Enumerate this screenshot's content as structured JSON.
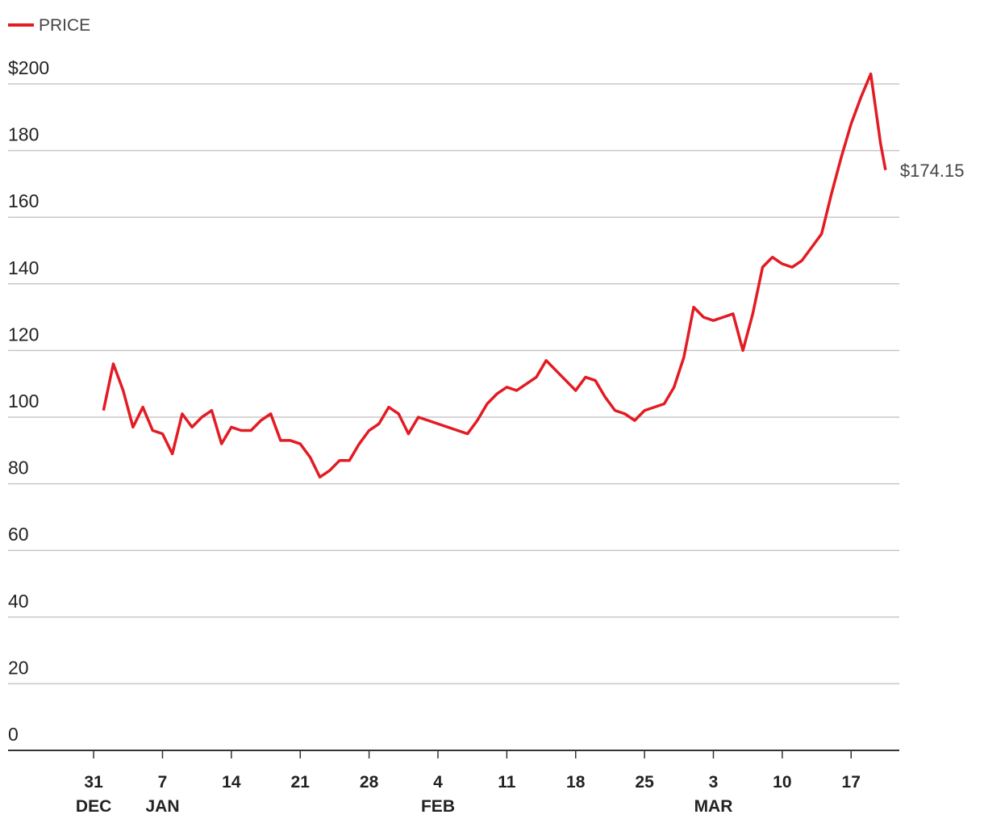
{
  "chart_data": {
    "type": "line",
    "x": [
      1,
      2,
      3,
      4,
      5,
      6,
      7,
      8,
      9,
      10,
      11,
      12,
      13,
      14,
      15,
      16,
      17,
      18,
      19,
      20,
      21,
      22,
      23,
      24,
      25,
      26,
      27,
      28,
      29,
      30,
      31,
      32,
      33,
      34,
      35,
      36,
      37,
      38,
      39,
      40,
      41,
      42,
      43,
      44,
      45,
      46,
      47,
      48,
      49,
      50,
      51,
      52,
      53,
      54,
      55,
      56,
      57,
      58,
      59,
      60,
      61,
      62,
      63,
      64,
      65,
      66,
      67,
      68,
      69,
      70,
      71,
      72,
      73,
      74,
      75,
      76,
      77,
      78,
      79,
      80,
      80.5
    ],
    "series": [
      {
        "name": "PRICE",
        "color": "#e31b23",
        "values": [
          102,
          116,
          108,
          97,
          103,
          96,
          95,
          89,
          101,
          97,
          100,
          102,
          92,
          97,
          96,
          96,
          99,
          101,
          93,
          93,
          92,
          88,
          82,
          84,
          87,
          87,
          92,
          96,
          98,
          103,
          101,
          95,
          100,
          99,
          98,
          97,
          96,
          95,
          99,
          104,
          107,
          109,
          108,
          110,
          112,
          117,
          114,
          111,
          108,
          112,
          111,
          106,
          102,
          101,
          99,
          102,
          103,
          104,
          109,
          118,
          133,
          130,
          129,
          130,
          131,
          120,
          131,
          145,
          148,
          146,
          145,
          147,
          151,
          155,
          167,
          178,
          188,
          196,
          203,
          182,
          174.15
        ],
        "value_labels": [
          null,
          null,
          null,
          null,
          null,
          null,
          null,
          null,
          null,
          null,
          null,
          null,
          null,
          null,
          null,
          null,
          null,
          null,
          null,
          null,
          null,
          null,
          null,
          null,
          null,
          null,
          null,
          null,
          null,
          null,
          null,
          null,
          null,
          null,
          null,
          null,
          null,
          null,
          null,
          null,
          null,
          null,
          null,
          null,
          null,
          null,
          null,
          null,
          null,
          null,
          null,
          null,
          null,
          null,
          null,
          null,
          null,
          null,
          null,
          null,
          null,
          null,
          null,
          null,
          null,
          null,
          null,
          null,
          null,
          null,
          null,
          null,
          null,
          null,
          null,
          null,
          null,
          null,
          null,
          null,
          "$174.15"
        ]
      }
    ],
    "xlim": [
      -8.7,
      81.9
    ],
    "xticks": [
      {
        "value": 0,
        "label": "31"
      },
      {
        "value": 7,
        "label": "7"
      },
      {
        "value": 14,
        "label": "14"
      },
      {
        "value": 21,
        "label": "21"
      },
      {
        "value": 28,
        "label": "28"
      },
      {
        "value": 35,
        "label": "4"
      },
      {
        "value": 42,
        "label": "11"
      },
      {
        "value": 49,
        "label": "18"
      },
      {
        "value": 56,
        "label": "25"
      },
      {
        "value": 63,
        "label": "3"
      },
      {
        "value": 70,
        "label": "10"
      },
      {
        "value": 77,
        "label": "17"
      }
    ],
    "month_labels": [
      {
        "value": 0,
        "label": "DEC"
      },
      {
        "value": 7,
        "label": "JAN"
      },
      {
        "value": 35,
        "label": "FEB"
      },
      {
        "value": 63,
        "label": "MAR"
      }
    ],
    "ylim": [
      0,
      200
    ],
    "yticks": [
      0,
      20,
      40,
      60,
      80,
      100,
      120,
      140,
      160,
      180,
      {
        "value": 200,
        "label": "$200"
      }
    ],
    "grid": true
  }
}
